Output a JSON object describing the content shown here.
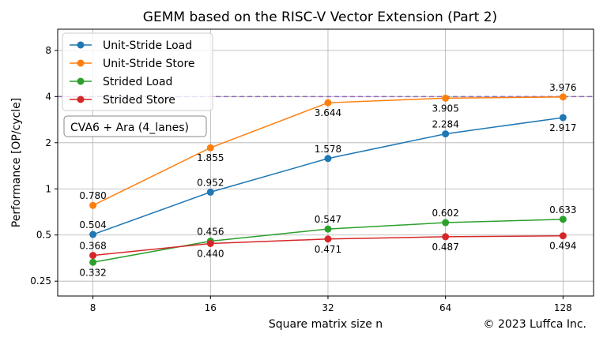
{
  "chart_data": {
    "type": "line",
    "title": "GEMM based on the RISC-V Vector Extension (Part 2)",
    "xlabel": "Square matrix size n",
    "ylabel": "Performance [OP/cycle]",
    "x": [
      8,
      16,
      32,
      64,
      128
    ],
    "x_tick_labels": [
      "8",
      "16",
      "32",
      "64",
      "128"
    ],
    "x_scale": "log2",
    "y_scale": "log2",
    "ylim": [
      0.2,
      11.0
    ],
    "y_ticks": [
      0.25,
      0.5,
      1,
      2,
      4,
      8
    ],
    "y_tick_labels": [
      "0.25",
      "0.5",
      "1",
      "2",
      "4",
      "8"
    ],
    "grid": true,
    "legend_position": "top-left",
    "reference_line": {
      "value": 4,
      "style": "dashed",
      "color": "#9467bd"
    },
    "series": [
      {
        "name": "Unit-Stride Load",
        "color": "#1f77b4",
        "values": [
          0.504,
          0.952,
          1.578,
          2.284,
          2.917
        ],
        "labels": [
          "0.504",
          "0.952",
          "1.578",
          "2.284",
          "2.917"
        ],
        "label_side": [
          "above",
          "above",
          "above",
          "above",
          "below"
        ]
      },
      {
        "name": "Unit-Stride Store",
        "color": "#ff7f0e",
        "values": [
          0.78,
          1.855,
          3.644,
          3.905,
          3.976
        ],
        "labels": [
          "0.780",
          "1.855",
          "3.644",
          "3.905",
          "3.976"
        ],
        "label_side": [
          "above",
          "below",
          "below",
          "below",
          "above"
        ]
      },
      {
        "name": "Strided Load",
        "color": "#2ca02c",
        "values": [
          0.332,
          0.456,
          0.547,
          0.602,
          0.633
        ],
        "labels": [
          "0.332",
          "0.456",
          "0.547",
          "0.602",
          "0.633"
        ],
        "label_side": [
          "below",
          "above",
          "above",
          "above",
          "above"
        ]
      },
      {
        "name": "Strided Store",
        "color": "#d62728",
        "values": [
          0.368,
          0.44,
          0.471,
          0.487,
          0.494
        ],
        "labels": [
          "0.368",
          "0.440",
          "0.471",
          "0.487",
          "0.494"
        ],
        "label_side": [
          "above",
          "below",
          "below",
          "below",
          "below"
        ]
      }
    ],
    "annotation": "CVA6 + Ara (4_lanes)",
    "copyright": "© 2023 Luffca Inc."
  }
}
